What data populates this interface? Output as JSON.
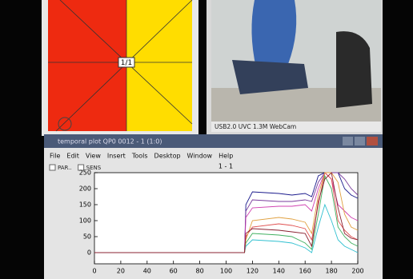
{
  "left_panel": {
    "label": "1/1"
  },
  "webcam": {
    "caption": "USB2.0 UVC 1.3M WebCam"
  },
  "window": {
    "title": "temporal plot QP0 0012 - 1 (1:0)",
    "menu": [
      "File",
      "Edit",
      "View",
      "Insert",
      "Tools",
      "Desktop",
      "Window",
      "Help"
    ],
    "checkboxes": [
      "PAR..",
      "SENS"
    ]
  },
  "chart_data": {
    "type": "line",
    "title": "1 - 1",
    "x": [
      0,
      114,
      115,
      120,
      140,
      150,
      160,
      165,
      170,
      175,
      180,
      185,
      190,
      195,
      200
    ],
    "series": [
      {
        "color": "#1a1a8c",
        "values": [
          0,
          0,
          150,
          190,
          185,
          180,
          185,
          175,
          240,
          250,
          250,
          250,
          200,
          180,
          170
        ]
      },
      {
        "color": "#7a3d9c",
        "values": [
          0,
          0,
          130,
          165,
          160,
          160,
          165,
          160,
          220,
          250,
          250,
          250,
          230,
          200,
          180
        ]
      },
      {
        "color": "#d040b0",
        "values": [
          0,
          0,
          110,
          140,
          145,
          145,
          150,
          130,
          200,
          250,
          230,
          150,
          130,
          110,
          100
        ]
      },
      {
        "color": "#e05050",
        "values": [
          0,
          0,
          50,
          80,
          90,
          85,
          75,
          40,
          150,
          250,
          230,
          100,
          70,
          50,
          40
        ]
      },
      {
        "color": "#40b060",
        "values": [
          0,
          0,
          30,
          60,
          55,
          50,
          30,
          10,
          120,
          240,
          200,
          80,
          50,
          30,
          20
        ]
      },
      {
        "color": "#30c0d0",
        "values": [
          0,
          0,
          20,
          40,
          35,
          30,
          15,
          0,
          80,
          150,
          100,
          40,
          20,
          10,
          0
        ]
      },
      {
        "color": "#e0a040",
        "values": [
          0,
          0,
          40,
          100,
          110,
          105,
          95,
          60,
          180,
          250,
          250,
          220,
          120,
          80,
          70
        ]
      },
      {
        "color": "#8a2030",
        "values": [
          0,
          0,
          60,
          75,
          70,
          65,
          60,
          20,
          160,
          230,
          250,
          140,
          60,
          45,
          40
        ]
      }
    ],
    "xlim": [
      0,
      200
    ],
    "ylim": [
      -35,
      250
    ],
    "xticks": [
      0,
      20,
      40,
      60,
      80,
      100,
      120,
      140,
      160,
      180,
      200
    ],
    "yticks": [
      0,
      50,
      100,
      150,
      200,
      250
    ]
  }
}
